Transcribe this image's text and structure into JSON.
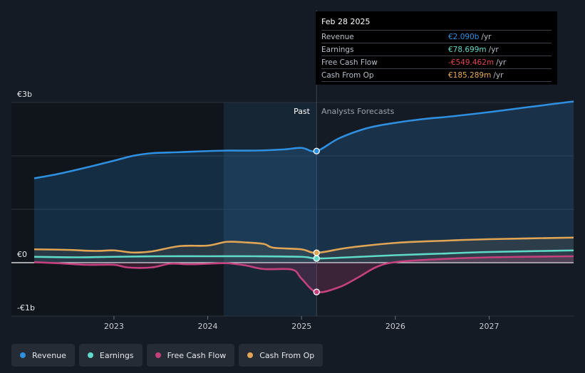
{
  "tooltip": {
    "date": "Feb 28 2025",
    "rows": [
      {
        "name": "Revenue",
        "value": "€2.090b",
        "unit": "/yr",
        "color": "#2f8fe0"
      },
      {
        "name": "Earnings",
        "value": "€78.699m",
        "unit": "/yr",
        "color": "#5fd9c8"
      },
      {
        "name": "Free Cash Flow",
        "value": "-€549.462m",
        "unit": "/yr",
        "color": "#e0444e"
      },
      {
        "name": "Cash From Op",
        "value": "€185.289m",
        "unit": "/yr",
        "color": "#e8ae5a"
      }
    ]
  },
  "legend": [
    {
      "label": "Revenue",
      "color": "#2f8fe0"
    },
    {
      "label": "Earnings",
      "color": "#5fd9c8"
    },
    {
      "label": "Free Cash Flow",
      "color": "#c4417e"
    },
    {
      "label": "Cash From Op",
      "color": "#e0a555"
    }
  ],
  "chart_data": {
    "type": "line",
    "y_tick_labels": [
      "€3b",
      "€0",
      "-€1b"
    ],
    "x_tick_labels": [
      "2023",
      "2024",
      "2025",
      "2026",
      "2027"
    ],
    "region_labels": {
      "past": "Past",
      "forecast": "Analysts Forecasts"
    },
    "ylim": [
      -1.0,
      3.0
    ],
    "xlim": [
      2022.15,
      2027.9
    ],
    "highlight_range": [
      2024.17,
      2025.16
    ],
    "divider_x": 2025.16,
    "series": [
      {
        "name": "Revenue",
        "color": "#2f8fe0",
        "fill": true,
        "points": [
          [
            2022.15,
            1.58
          ],
          [
            2022.4,
            1.66
          ],
          [
            2022.7,
            1.78
          ],
          [
            2023.0,
            1.91
          ],
          [
            2023.2,
            2.0
          ],
          [
            2023.4,
            2.05
          ],
          [
            2023.7,
            2.07
          ],
          [
            2024.0,
            2.09
          ],
          [
            2024.2,
            2.1
          ],
          [
            2024.5,
            2.1
          ],
          [
            2024.8,
            2.12
          ],
          [
            2025.0,
            2.15
          ],
          [
            2025.16,
            2.09
          ],
          [
            2025.4,
            2.33
          ],
          [
            2025.7,
            2.52
          ],
          [
            2026.0,
            2.62
          ],
          [
            2026.3,
            2.69
          ],
          [
            2026.6,
            2.74
          ],
          [
            2027.0,
            2.82
          ],
          [
            2027.4,
            2.91
          ],
          [
            2027.9,
            3.02
          ]
        ]
      },
      {
        "name": "Earnings",
        "color": "#5fd9c8",
        "fill": false,
        "points": [
          [
            2022.15,
            0.11
          ],
          [
            2022.6,
            0.1
          ],
          [
            2023.0,
            0.11
          ],
          [
            2023.5,
            0.12
          ],
          [
            2024.0,
            0.12
          ],
          [
            2024.5,
            0.12
          ],
          [
            2025.0,
            0.11
          ],
          [
            2025.16,
            0.079
          ],
          [
            2025.5,
            0.1
          ],
          [
            2026.0,
            0.14
          ],
          [
            2026.5,
            0.17
          ],
          [
            2027.0,
            0.2
          ],
          [
            2027.9,
            0.23
          ]
        ]
      },
      {
        "name": "Free Cash Flow",
        "color": "#c4417e",
        "fill": true,
        "points": [
          [
            2022.15,
            0.01
          ],
          [
            2022.4,
            -0.01
          ],
          [
            2022.7,
            -0.04
          ],
          [
            2023.0,
            -0.04
          ],
          [
            2023.15,
            -0.09
          ],
          [
            2023.4,
            -0.09
          ],
          [
            2023.6,
            -0.02
          ],
          [
            2023.8,
            -0.03
          ],
          [
            2024.0,
            -0.02
          ],
          [
            2024.2,
            -0.01
          ],
          [
            2024.4,
            -0.05
          ],
          [
            2024.6,
            -0.12
          ],
          [
            2024.9,
            -0.13
          ],
          [
            2025.0,
            -0.3
          ],
          [
            2025.16,
            -0.549
          ],
          [
            2025.4,
            -0.46
          ],
          [
            2025.6,
            -0.28
          ],
          [
            2025.8,
            -0.08
          ],
          [
            2026.0,
            0.01
          ],
          [
            2026.4,
            0.06
          ],
          [
            2027.0,
            0.1
          ],
          [
            2027.9,
            0.12
          ]
        ]
      },
      {
        "name": "Cash From Op",
        "color": "#e0a555",
        "fill": true,
        "points": [
          [
            2022.15,
            0.25
          ],
          [
            2022.5,
            0.24
          ],
          [
            2022.8,
            0.22
          ],
          [
            2023.0,
            0.23
          ],
          [
            2023.2,
            0.19
          ],
          [
            2023.4,
            0.21
          ],
          [
            2023.7,
            0.31
          ],
          [
            2024.0,
            0.32
          ],
          [
            2024.2,
            0.39
          ],
          [
            2024.4,
            0.38
          ],
          [
            2024.6,
            0.35
          ],
          [
            2024.7,
            0.28
          ],
          [
            2025.0,
            0.25
          ],
          [
            2025.16,
            0.185
          ],
          [
            2025.5,
            0.28
          ],
          [
            2026.0,
            0.37
          ],
          [
            2026.5,
            0.41
          ],
          [
            2027.0,
            0.44
          ],
          [
            2027.9,
            0.47
          ]
        ]
      }
    ]
  }
}
